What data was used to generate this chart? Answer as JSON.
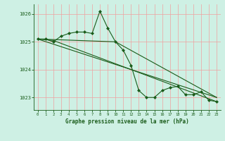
{
  "title": "Graphe pression niveau de la mer (hPa)",
  "bg_color": "#cef0e4",
  "grid_color": "#f0a0a0",
  "line_color": "#1a5c1a",
  "text_color": "#1a5c1a",
  "xlim": [
    -0.5,
    23.5
  ],
  "ylim": [
    1022.55,
    1026.35
  ],
  "yticks": [
    1023,
    1024,
    1025,
    1026
  ],
  "xticks": [
    0,
    1,
    2,
    3,
    4,
    5,
    6,
    7,
    8,
    9,
    10,
    11,
    12,
    13,
    14,
    15,
    16,
    17,
    18,
    19,
    20,
    21,
    22,
    23
  ],
  "series": [
    {
      "x": [
        0,
        1,
        2,
        3,
        4,
        5,
        6,
        7,
        8,
        9,
        10,
        11,
        12,
        13,
        14,
        15,
        16,
        17,
        18,
        19,
        20,
        21,
        22,
        23
      ],
      "y": [
        1025.1,
        1025.1,
        1025.0,
        1025.2,
        1025.3,
        1025.35,
        1025.35,
        1025.3,
        1026.1,
        1025.5,
        1025.0,
        1024.7,
        1024.15,
        1023.25,
        1023.0,
        1023.0,
        1023.25,
        1023.35,
        1023.4,
        1023.1,
        1023.1,
        1023.2,
        1022.9,
        1022.85
      ],
      "marker": "D",
      "markersize": 2.0,
      "lw": 0.8
    },
    {
      "x": [
        0,
        23
      ],
      "y": [
        1025.1,
        1023.0
      ],
      "marker": null,
      "markersize": 0,
      "lw": 0.8
    },
    {
      "x": [
        0,
        10,
        23
      ],
      "y": [
        1025.1,
        1025.0,
        1023.0
      ],
      "marker": null,
      "markersize": 0,
      "lw": 0.8
    },
    {
      "x": [
        0,
        2,
        23
      ],
      "y": [
        1025.1,
        1025.05,
        1022.85
      ],
      "marker": null,
      "markersize": 0,
      "lw": 0.8
    }
  ]
}
